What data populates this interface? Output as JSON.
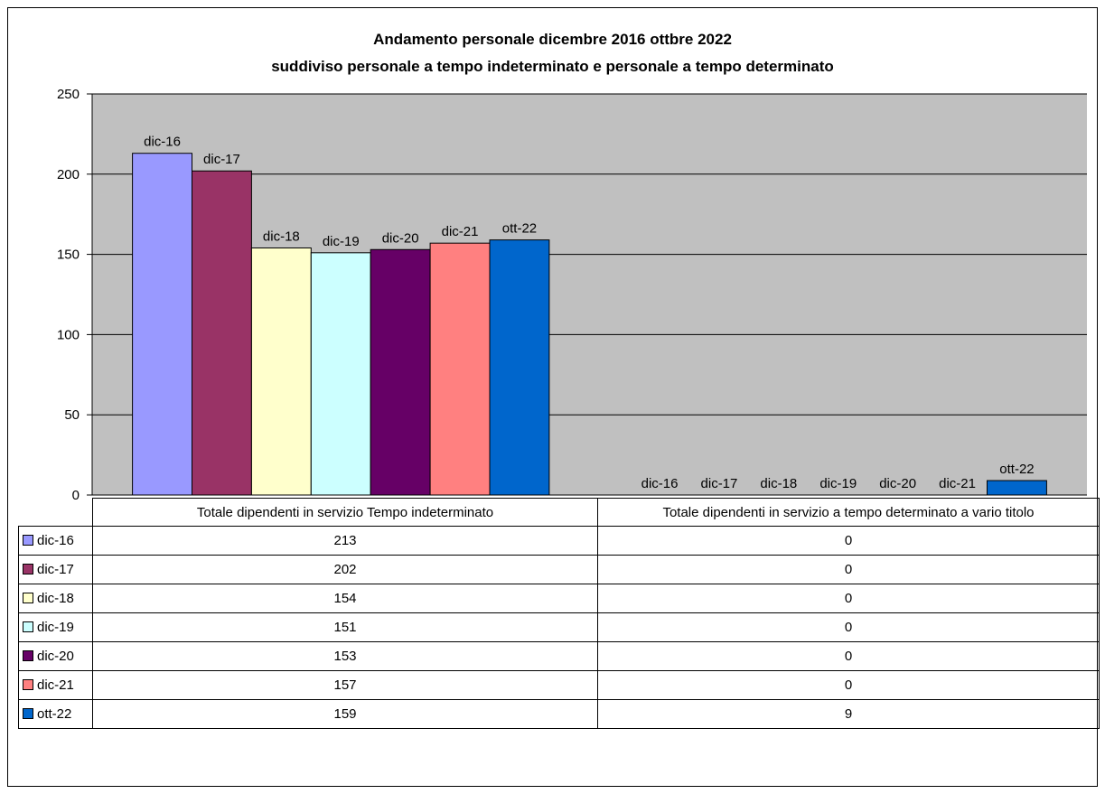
{
  "chart_data": {
    "type": "bar",
    "title": "Andamento personale dicembre 2016 ottbre 2022",
    "subtitle": "suddiviso personale a tempo indeterminato e personale a tempo determinato",
    "categories": [
      "Totale dipendenti in servizio Tempo indeterminato",
      "Totale dipendenti in servizio a tempo determinato a vario titolo"
    ],
    "series": [
      {
        "name": "dic-16",
        "color": "#9999FF",
        "values": [
          213,
          0
        ]
      },
      {
        "name": "dic-17",
        "color": "#993366",
        "values": [
          202,
          0
        ]
      },
      {
        "name": "dic-18",
        "color": "#FFFFCC",
        "values": [
          154,
          0
        ]
      },
      {
        "name": "dic-19",
        "color": "#CCFFFF",
        "values": [
          151,
          0
        ]
      },
      {
        "name": "dic-20",
        "color": "#660066",
        "values": [
          153,
          0
        ]
      },
      {
        "name": "dic-21",
        "color": "#FF8080",
        "values": [
          157,
          0
        ]
      },
      {
        "name": "ott-22",
        "color": "#0066CC",
        "values": [
          159,
          9
        ]
      }
    ],
    "ylim": [
      0,
      250
    ],
    "yticks": [
      0,
      50,
      100,
      150,
      200,
      250
    ],
    "plot_background": "#C0C0C0",
    "grid": true,
    "legend": "data table below chart"
  }
}
